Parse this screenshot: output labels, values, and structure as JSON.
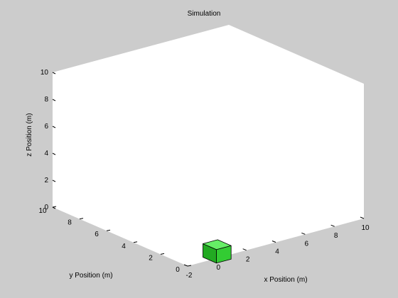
{
  "chart_data": {
    "type": "3d-scatter",
    "title": "Simulation",
    "xlabel": "x Position (m)",
    "ylabel": "y Position (m)",
    "zlabel": "z Position (m)",
    "xlim": [
      -2,
      10
    ],
    "ylim": [
      0,
      10
    ],
    "zlim": [
      0,
      10
    ],
    "xticks": [
      "-2",
      "0",
      "2",
      "4",
      "6",
      "8",
      "10"
    ],
    "yticks": [
      "0",
      "2",
      "4",
      "6",
      "8",
      "10"
    ],
    "zticks": [
      "0",
      "2",
      "4",
      "6",
      "8",
      "10"
    ],
    "grid": false,
    "objects": [
      {
        "shape": "cube",
        "center": [
          0,
          0,
          0.5
        ],
        "size": 1,
        "color": "#33cc33"
      }
    ]
  },
  "colors": {
    "figure_background": "#cccccc",
    "axes_background": "#ffffff",
    "cube_top": "#66ee66",
    "cube_front": "#33cc33",
    "cube_side": "#22aa22"
  }
}
